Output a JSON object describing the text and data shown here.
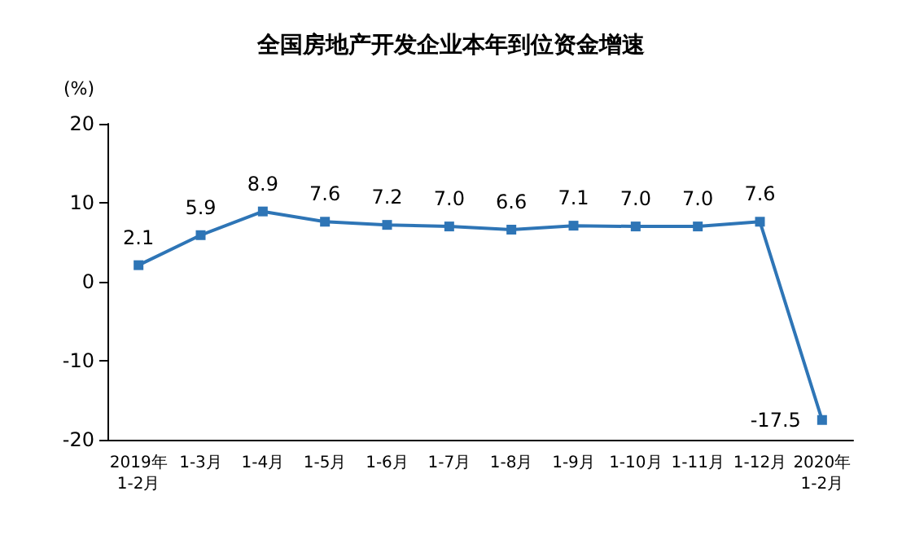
{
  "chart_data": {
    "type": "line",
    "title": "全国房地产开发企业本年到位资金增速",
    "ylabel": "(%)",
    "categories": [
      "2019年\n1-2月",
      "1-3月",
      "1-4月",
      "1-5月",
      "1-6月",
      "1-7月",
      "1-8月",
      "1-9月",
      "1-10月",
      "1-11月",
      "1-12月",
      "2020年\n1-2月"
    ],
    "series": [
      {
        "color": "#2e75b6",
        "values": [
          2.1,
          5.9,
          8.9,
          7.6,
          7.2,
          7.0,
          6.6,
          7.1,
          7.0,
          7.0,
          7.6,
          -17.5
        ],
        "value_labels": [
          "2.1",
          "5.9",
          "8.9",
          "7.6",
          "7.2",
          "7.0",
          "6.6",
          "7.1",
          "7.0",
          "7.0",
          "7.6",
          "-17.5"
        ]
      }
    ],
    "ylim": [
      -20,
      20
    ],
    "yticks": [
      -20,
      -10,
      0,
      10,
      20
    ],
    "grid": false,
    "marker": "square",
    "line_style": "solid"
  }
}
